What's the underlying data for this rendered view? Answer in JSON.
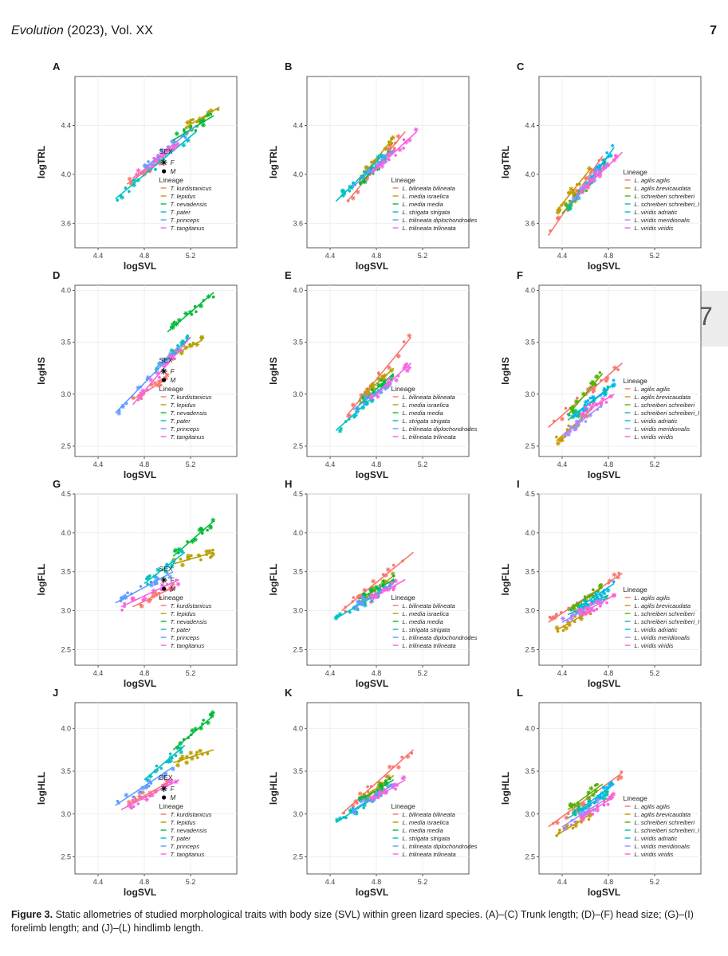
{
  "header": {
    "journal": "Evolution",
    "rest": " (2023), Vol. XX",
    "page": "7"
  },
  "page_tab": "7",
  "caption": {
    "label": "Figure 3.",
    "text": " Static allometries of studied morphological traits with body size (SVL) within green lizard species. (A)–(C) Trunk length; (D)–(F) head size; (G)–(I) forelimb length; and (J)–(L) hindlimb length."
  },
  "legend_labels": {
    "sex_title": "SEX",
    "sex_f": "F",
    "sex_m": "M",
    "lineage_title": "Lineage"
  },
  "lineage_sets": {
    "T": [
      "T. kurdistanicus",
      "T. lepidus",
      "T. nevadensis",
      "T. pater",
      "T. princeps",
      "T. tangitanus"
    ],
    "LB": [
      "L. bilineata bilineata",
      "L. media israelica",
      "L. media media",
      "L. strigata strigata",
      "L. trilineata diplochondrodes",
      "L. trilineata trilineata"
    ],
    "LA": [
      "L. agilis agilis",
      "L. agilis brevicaudata",
      "L. schreiberi schreiberi",
      "L. schreiberi schreiberi_I",
      "L. viridis adriatic",
      "L. viridis meridionalis",
      "L. viridis viridis"
    ]
  },
  "colors": {
    "T": [
      "#F8766D",
      "#B79F00",
      "#00BA38",
      "#00BFC4",
      "#619CFF",
      "#F564E3"
    ],
    "LB": [
      "#F8766D",
      "#B79F00",
      "#00BA38",
      "#00BFC4",
      "#619CFF",
      "#F564E3"
    ],
    "LA": [
      "#F8766D",
      "#C49A00",
      "#53B400",
      "#00C094",
      "#00B6EB",
      "#A58AFF",
      "#FB61D7"
    ]
  },
  "chart_data": [
    {
      "letter": "A",
      "type": "scatter",
      "lineage_set": "T",
      "show_sex": true,
      "xlabel": "logSVL",
      "ylabel": "logTRL",
      "xticks": [
        "4.4",
        "4.8",
        "5.2"
      ],
      "yticks": [
        "3.6",
        "4.0",
        "4.4"
      ],
      "xlim": [
        4.2,
        5.6
      ],
      "ylim": [
        3.4,
        4.8
      ],
      "series": [
        {
          "x": [
            4.65,
            4.95
          ],
          "y": [
            3.92,
            4.12
          ]
        },
        {
          "x": [
            5.15,
            5.45
          ],
          "y": [
            4.38,
            4.55
          ]
        },
        {
          "x": [
            5.05,
            5.4
          ],
          "y": [
            4.28,
            4.48
          ]
        },
        {
          "x": [
            4.55,
            5.25
          ],
          "y": [
            3.8,
            4.35
          ]
        },
        {
          "x": [
            4.8,
            5.25
          ],
          "y": [
            4.05,
            4.4
          ]
        },
        {
          "x": [
            4.7,
            5.1
          ],
          "y": [
            3.97,
            4.25
          ]
        }
      ]
    },
    {
      "letter": "B",
      "type": "scatter",
      "lineage_set": "LB",
      "show_sex": false,
      "xlabel": "logSVL",
      "ylabel": "logTRL",
      "xticks": [
        "4.4",
        "4.8",
        "5.2"
      ],
      "yticks": [
        "3.6",
        "4.0",
        "4.4"
      ],
      "xlim": [
        4.2,
        5.6
      ],
      "ylim": [
        3.4,
        4.8
      ],
      "series": [
        {
          "x": [
            4.55,
            5.05
          ],
          "y": [
            3.78,
            4.35
          ]
        },
        {
          "x": [
            4.65,
            4.95
          ],
          "y": [
            3.95,
            4.3
          ]
        },
        {
          "x": [
            4.65,
            4.95
          ],
          "y": [
            3.92,
            4.2
          ]
        },
        {
          "x": [
            4.45,
            4.85
          ],
          "y": [
            3.78,
            4.15
          ]
        },
        {
          "x": [
            4.6,
            4.95
          ],
          "y": [
            3.9,
            4.2
          ]
        },
        {
          "x": [
            4.75,
            5.15
          ],
          "y": [
            4.0,
            4.35
          ]
        }
      ]
    },
    {
      "letter": "C",
      "type": "scatter",
      "lineage_set": "LA",
      "show_sex": false,
      "xlabel": "logSVL",
      "ylabel": "logTRL",
      "xticks": [
        "4.4",
        "4.8",
        "5.2"
      ],
      "yticks": [
        "3.6",
        "4.0",
        "4.4"
      ],
      "xlim": [
        4.2,
        5.6
      ],
      "ylim": [
        3.4,
        4.8
      ],
      "series": [
        {
          "x": [
            4.28,
            4.75
          ],
          "y": [
            3.5,
            4.15
          ]
        },
        {
          "x": [
            4.35,
            4.65
          ],
          "y": [
            3.7,
            4.05
          ]
        },
        {
          "x": [
            4.4,
            4.75
          ],
          "y": [
            3.68,
            4.05
          ]
        },
        {
          "x": [
            4.45,
            4.8
          ],
          "y": [
            3.72,
            4.15
          ]
        },
        {
          "x": [
            4.5,
            4.85
          ],
          "y": [
            3.78,
            4.22
          ]
        },
        {
          "x": [
            4.45,
            4.8
          ],
          "y": [
            3.75,
            4.1
          ]
        },
        {
          "x": [
            4.55,
            4.92
          ],
          "y": [
            3.85,
            4.18
          ]
        }
      ]
    },
    {
      "letter": "D",
      "type": "scatter",
      "lineage_set": "T",
      "show_sex": true,
      "xlabel": "logSVL",
      "ylabel": "logHS",
      "xticks": [
        "4.4",
        "4.8",
        "5.2"
      ],
      "yticks": [
        "2.5",
        "3.0",
        "3.5",
        "4.0"
      ],
      "xlim": [
        4.2,
        5.6
      ],
      "ylim": [
        2.4,
        4.05
      ],
      "series": [
        {
          "x": [
            4.7,
            5.0
          ],
          "y": [
            2.95,
            3.15
          ]
        },
        {
          "x": [
            5.0,
            5.3
          ],
          "y": [
            3.35,
            3.52
          ]
        },
        {
          "x": [
            5.0,
            5.4
          ],
          "y": [
            3.6,
            3.98
          ]
        },
        {
          "x": [
            4.9,
            5.2
          ],
          "y": [
            3.25,
            3.55
          ]
        },
        {
          "x": [
            4.55,
            5.1
          ],
          "y": [
            2.82,
            3.45
          ]
        },
        {
          "x": [
            4.7,
            5.2
          ],
          "y": [
            2.9,
            3.55
          ]
        }
      ]
    },
    {
      "letter": "E",
      "type": "scatter",
      "lineage_set": "LB",
      "show_sex": false,
      "xlabel": "logSVL",
      "ylabel": "logHS",
      "xticks": [
        "4.4",
        "4.8",
        "5.2"
      ],
      "yticks": [
        "2.5",
        "3.0",
        "3.5",
        "4.0"
      ],
      "xlim": [
        4.2,
        5.6
      ],
      "ylim": [
        2.4,
        4.05
      ],
      "series": [
        {
          "x": [
            4.55,
            5.1
          ],
          "y": [
            2.8,
            3.55
          ]
        },
        {
          "x": [
            4.65,
            4.95
          ],
          "y": [
            2.95,
            3.25
          ]
        },
        {
          "x": [
            4.65,
            4.95
          ],
          "y": [
            2.9,
            3.2
          ]
        },
        {
          "x": [
            4.45,
            4.85
          ],
          "y": [
            2.65,
            3.05
          ]
        },
        {
          "x": [
            4.6,
            4.95
          ],
          "y": [
            2.85,
            3.15
          ]
        },
        {
          "x": [
            4.75,
            5.1
          ],
          "y": [
            2.95,
            3.3
          ]
        }
      ]
    },
    {
      "letter": "F",
      "type": "scatter",
      "lineage_set": "LA",
      "show_sex": false,
      "xlabel": "logSVL",
      "ylabel": "logHS",
      "xticks": [
        "4.4",
        "4.8",
        "5.2"
      ],
      "yticks": [
        "2.5",
        "3.0",
        "3.5",
        "4.0"
      ],
      "xlim": [
        4.2,
        5.6
      ],
      "ylim": [
        2.4,
        4.05
      ],
      "series": [
        {
          "x": [
            4.28,
            4.92
          ],
          "y": [
            2.68,
            3.3
          ]
        },
        {
          "x": [
            4.35,
            4.65
          ],
          "y": [
            2.55,
            2.85
          ]
        },
        {
          "x": [
            4.45,
            4.75
          ],
          "y": [
            2.8,
            3.2
          ]
        },
        {
          "x": [
            4.45,
            4.8
          ],
          "y": [
            2.75,
            3.05
          ]
        },
        {
          "x": [
            4.5,
            4.85
          ],
          "y": [
            2.8,
            3.1
          ]
        },
        {
          "x": [
            4.4,
            4.75
          ],
          "y": [
            2.6,
            2.9
          ]
        },
        {
          "x": [
            4.55,
            4.85
          ],
          "y": [
            2.8,
            3.0
          ]
        }
      ]
    },
    {
      "letter": "G",
      "type": "scatter",
      "lineage_set": "T",
      "show_sex": true,
      "xlabel": "logSVL",
      "ylabel": "logFLL",
      "xticks": [
        "4.4",
        "4.8",
        "5.2"
      ],
      "yticks": [
        "2.5",
        "3.0",
        "3.5",
        "4.0",
        "4.5"
      ],
      "xlim": [
        4.2,
        5.6
      ],
      "ylim": [
        2.3,
        4.5
      ],
      "series": [
        {
          "x": [
            4.7,
            5.05
          ],
          "y": [
            3.05,
            3.3
          ]
        },
        {
          "x": [
            5.05,
            5.4
          ],
          "y": [
            3.6,
            3.75
          ]
        },
        {
          "x": [
            5.05,
            5.4
          ],
          "y": [
            3.7,
            4.15
          ]
        },
        {
          "x": [
            4.8,
            5.15
          ],
          "y": [
            3.35,
            3.75
          ]
        },
        {
          "x": [
            4.55,
            5.05
          ],
          "y": [
            3.1,
            3.5
          ]
        },
        {
          "x": [
            4.6,
            5.1
          ],
          "y": [
            3.05,
            3.4
          ]
        }
      ]
    },
    {
      "letter": "H",
      "type": "scatter",
      "lineage_set": "LB",
      "show_sex": false,
      "xlabel": "logSVL",
      "ylabel": "logFLL",
      "xticks": [
        "4.4",
        "4.8",
        "5.2"
      ],
      "yticks": [
        "2.5",
        "3.0",
        "3.5",
        "4.0",
        "4.5"
      ],
      "xlim": [
        4.2,
        5.6
      ],
      "ylim": [
        2.3,
        4.5
      ],
      "series": [
        {
          "x": [
            4.5,
            5.12
          ],
          "y": [
            3.0,
            3.75
          ]
        },
        {
          "x": [
            4.65,
            4.95
          ],
          "y": [
            3.1,
            3.45
          ]
        },
        {
          "x": [
            4.65,
            4.95
          ],
          "y": [
            3.15,
            3.4
          ]
        },
        {
          "x": [
            4.45,
            4.85
          ],
          "y": [
            2.9,
            3.25
          ]
        },
        {
          "x": [
            4.6,
            4.95
          ],
          "y": [
            3.05,
            3.35
          ]
        },
        {
          "x": [
            4.75,
            5.05
          ],
          "y": [
            3.15,
            3.4
          ]
        }
      ]
    },
    {
      "letter": "I",
      "type": "scatter",
      "lineage_set": "LA",
      "show_sex": false,
      "xlabel": "logSVL",
      "ylabel": "logFLL",
      "xticks": [
        "4.4",
        "4.8",
        "5.2"
      ],
      "yticks": [
        "2.5",
        "3.0",
        "3.5",
        "4.0",
        "4.5"
      ],
      "xlim": [
        4.2,
        5.6
      ],
      "ylim": [
        2.3,
        4.5
      ],
      "series": [
        {
          "x": [
            4.28,
            4.92
          ],
          "y": [
            2.85,
            3.48
          ]
        },
        {
          "x": [
            4.35,
            4.65
          ],
          "y": [
            2.75,
            3.0
          ]
        },
        {
          "x": [
            4.45,
            4.75
          ],
          "y": [
            3.0,
            3.3
          ]
        },
        {
          "x": [
            4.45,
            4.8
          ],
          "y": [
            2.95,
            3.2
          ]
        },
        {
          "x": [
            4.55,
            4.85
          ],
          "y": [
            3.05,
            3.35
          ]
        },
        {
          "x": [
            4.4,
            4.75
          ],
          "y": [
            2.85,
            3.15
          ]
        },
        {
          "x": [
            4.55,
            4.85
          ],
          "y": [
            2.95,
            3.2
          ]
        }
      ]
    },
    {
      "letter": "J",
      "type": "scatter",
      "lineage_set": "T",
      "show_sex": true,
      "xlabel": "logSVL",
      "ylabel": "logHLL",
      "xticks": [
        "4.4",
        "4.8",
        "5.2"
      ],
      "yticks": [
        "2.5",
        "3.0",
        "3.5",
        "4.0"
      ],
      "xlim": [
        4.2,
        5.6
      ],
      "ylim": [
        2.3,
        4.3
      ],
      "series": [
        {
          "x": [
            4.65,
            5.05
          ],
          "y": [
            3.1,
            3.4
          ]
        },
        {
          "x": [
            5.05,
            5.4
          ],
          "y": [
            3.6,
            3.75
          ]
        },
        {
          "x": [
            5.05,
            5.4
          ],
          "y": [
            3.75,
            4.15
          ]
        },
        {
          "x": [
            4.8,
            5.15
          ],
          "y": [
            3.4,
            3.8
          ]
        },
        {
          "x": [
            4.55,
            5.05
          ],
          "y": [
            3.1,
            3.55
          ]
        },
        {
          "x": [
            4.6,
            5.1
          ],
          "y": [
            3.05,
            3.4
          ]
        }
      ]
    },
    {
      "letter": "K",
      "type": "scatter",
      "lineage_set": "LB",
      "show_sex": false,
      "xlabel": "logSVL",
      "ylabel": "logHLL",
      "xticks": [
        "4.4",
        "4.8",
        "5.2"
      ],
      "yticks": [
        "2.5",
        "3.0",
        "3.5",
        "4.0"
      ],
      "xlim": [
        4.2,
        5.6
      ],
      "ylim": [
        2.3,
        4.3
      ],
      "series": [
        {
          "x": [
            4.5,
            5.12
          ],
          "y": [
            3.0,
            3.75
          ]
        },
        {
          "x": [
            4.65,
            4.95
          ],
          "y": [
            3.15,
            3.45
          ]
        },
        {
          "x": [
            4.65,
            4.95
          ],
          "y": [
            3.15,
            3.4
          ]
        },
        {
          "x": [
            4.45,
            4.85
          ],
          "y": [
            2.9,
            3.25
          ]
        },
        {
          "x": [
            4.6,
            4.95
          ],
          "y": [
            3.05,
            3.35
          ]
        },
        {
          "x": [
            4.75,
            5.05
          ],
          "y": [
            3.15,
            3.4
          ]
        }
      ]
    },
    {
      "letter": "L",
      "type": "scatter",
      "lineage_set": "LA",
      "show_sex": false,
      "xlabel": "logSVL",
      "ylabel": "logHLL",
      "xticks": [
        "4.4",
        "4.8",
        "5.2"
      ],
      "yticks": [
        "2.5",
        "3.0",
        "3.5",
        "4.0"
      ],
      "xlim": [
        4.2,
        5.6
      ],
      "ylim": [
        2.3,
        4.3
      ],
      "series": [
        {
          "x": [
            4.28,
            4.92
          ],
          "y": [
            2.85,
            3.48
          ]
        },
        {
          "x": [
            4.35,
            4.65
          ],
          "y": [
            2.75,
            3.0
          ]
        },
        {
          "x": [
            4.45,
            4.75
          ],
          "y": [
            3.05,
            3.35
          ]
        },
        {
          "x": [
            4.45,
            4.8
          ],
          "y": [
            2.95,
            3.25
          ]
        },
        {
          "x": [
            4.55,
            4.85
          ],
          "y": [
            3.05,
            3.35
          ]
        },
        {
          "x": [
            4.4,
            4.75
          ],
          "y": [
            2.85,
            3.15
          ]
        },
        {
          "x": [
            4.55,
            4.85
          ],
          "y": [
            2.95,
            3.2
          ]
        }
      ]
    }
  ]
}
